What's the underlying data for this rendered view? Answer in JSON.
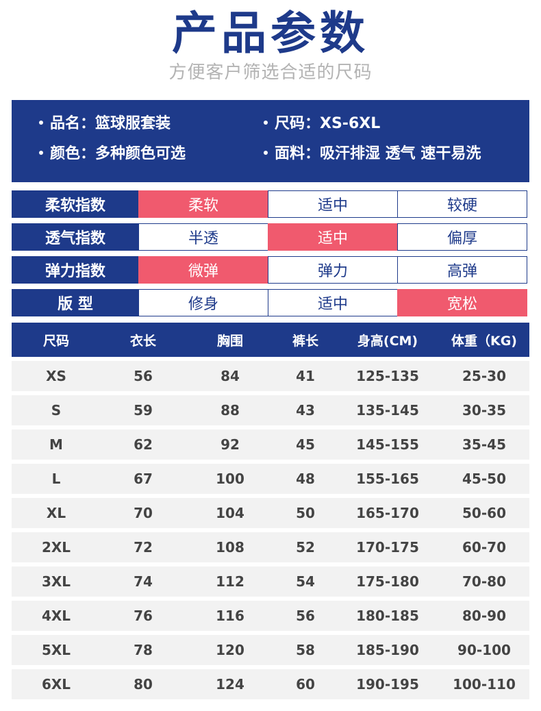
{
  "header": {
    "title": "产品参数",
    "subtitle": "方便客户筛选合适的尺码"
  },
  "info": {
    "name": "品名：篮球服套装",
    "size": "尺码：XS-6XL",
    "color": "颜色：多种颜色可选",
    "fabric": "面料：吸汗排湿 透气 速干易洗"
  },
  "indices": [
    {
      "label": "柔软指数",
      "options": [
        "柔软",
        "适中",
        "较硬"
      ],
      "active": 0
    },
    {
      "label": "透气指数",
      "options": [
        "半透",
        "适中",
        "偏厚"
      ],
      "active": 1
    },
    {
      "label": "弹力指数",
      "options": [
        "微弹",
        "弹力",
        "高弹"
      ],
      "active": 0
    },
    {
      "label": "版  型",
      "options": [
        "修身",
        "适中",
        "宽松"
      ],
      "active": 2
    }
  ],
  "size_table": {
    "headers": [
      "尺码",
      "衣长",
      "胸围",
      "裤长",
      "身高(CM)",
      "体重（KG)"
    ],
    "rows": [
      [
        "XS",
        "56",
        "84",
        "41",
        "125-135",
        "25-30"
      ],
      [
        "S",
        "59",
        "88",
        "43",
        "135-145",
        "30-35"
      ],
      [
        "M",
        "62",
        "92",
        "45",
        "145-155",
        "35-45"
      ],
      [
        "L",
        "67",
        "100",
        "48",
        "155-165",
        "45-50"
      ],
      [
        "XL",
        "70",
        "104",
        "50",
        "165-170",
        "50-60"
      ],
      [
        "2XL",
        "72",
        "108",
        "52",
        "170-175",
        "60-70"
      ],
      [
        "3XL",
        "74",
        "112",
        "54",
        "175-180",
        "70-80"
      ],
      [
        "4XL",
        "76",
        "116",
        "56",
        "180-185",
        "80-90"
      ],
      [
        "5XL",
        "78",
        "120",
        "58",
        "185-190",
        "90-100"
      ],
      [
        "6XL",
        "80",
        "124",
        "60",
        "190-195",
        "100-110"
      ]
    ]
  },
  "colors": {
    "primary": "#1e3a8a",
    "accent": "#f05a6e",
    "row_bg": "#f2f2f2"
  }
}
